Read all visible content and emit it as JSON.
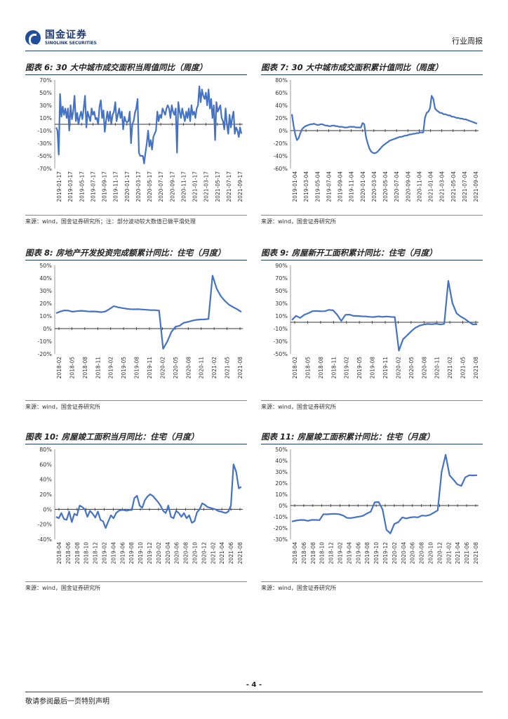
{
  "header": {
    "logo_cn": "国金证券",
    "logo_en": "SINOLINK SECURITIES",
    "report_type": "行业周报"
  },
  "footer": {
    "page": "- 4 -",
    "note": "敬请参阅最后一页特别声明"
  },
  "colors": {
    "line": "#4472c4",
    "rule": "#1f3b78"
  },
  "panels": [
    {
      "title": "图表 6: 30 大中城市成交面积当周值同比（周度）",
      "source": "来源：wind，国金证券研究所；注：部分波动较大数值已做平滑处理"
    },
    {
      "title": "图表 7: 30 大中城市成交面积累计值同比（周度）",
      "source": "来源：wind，国金证券研究所"
    },
    {
      "title": "图表 8: 房地产开发投资完成额累计同比：住宅（月度）",
      "source": "来源：wind，国金证券研究所"
    },
    {
      "title": "图表 9: 房屋新开工面积累计同比：住宅（月度）",
      "source": "来源：wind，国金证券研究所"
    },
    {
      "title": "图表 10: 房屋竣工面积当月同比：住宅（月度）",
      "source": "来源：wind，国金证券研究所"
    },
    {
      "title": "图表 11: 房屋竣工面积累计同比：住宅（月度）",
      "source": "来源：wind，国金证券研究所"
    }
  ],
  "chart_data": [
    {
      "type": "line",
      "title": "图表 6: 30 大中城市成交面积当周值同比（周度）",
      "ylim": [
        -70,
        70
      ],
      "yticks": [
        70,
        50,
        30,
        10,
        -10,
        -30,
        -50,
        -70
      ],
      "ytick_labels": [
        "70%",
        "50%",
        "30%",
        "10%",
        "-10%",
        "-30%",
        "-50%",
        "-70%"
      ],
      "xtick_labels": [
        "2019-01-17",
        "2019-03-17",
        "2019-05-17",
        "2019-07-17",
        "2019-09-17",
        "2019-11-17",
        "2020-01-17",
        "2020-03-17",
        "2020-05-17",
        "2020-07-17",
        "2020-09-17",
        "2020-11-17",
        "2021-01-17",
        "2021-03-17",
        "2021-05-17",
        "2021-07-17",
        "2021-09-17"
      ],
      "series": [
        {
          "name": "30大中城市成交面积当周值同比",
          "values": [
            -5,
            -10,
            -48,
            48,
            12,
            28,
            15,
            25,
            10,
            25,
            -10,
            30,
            8,
            20,
            45,
            5,
            18,
            0,
            12,
            20,
            8,
            25,
            45,
            -5,
            20,
            12,
            5,
            25,
            15,
            20,
            8,
            10,
            0,
            28,
            38,
            10,
            22,
            -12,
            5,
            20,
            5,
            20,
            0,
            15,
            20,
            35,
            5,
            15,
            25,
            10,
            20,
            -8,
            12,
            5,
            3,
            5,
            20,
            -30,
            0,
            5,
            18,
            25,
            40,
            -45,
            -50,
            -50,
            -50,
            -62,
            -45,
            -30,
            -10,
            -35,
            -25,
            -40,
            -20,
            -15,
            -10,
            20,
            5,
            15,
            10,
            25,
            20,
            15,
            25,
            30,
            25,
            10,
            30,
            20,
            15,
            25,
            -45,
            35,
            20,
            10,
            25,
            15,
            5,
            20,
            10,
            25,
            5,
            30,
            15,
            20,
            10,
            25,
            30,
            60,
            35,
            55,
            45,
            40,
            50,
            30,
            55,
            25,
            40,
            10,
            30,
            -25,
            35,
            20,
            25,
            30,
            10,
            5,
            -8,
            25,
            0,
            -15,
            15,
            -5,
            10,
            20,
            -15,
            -5,
            -10,
            -20,
            -5,
            -15
          ]
        }
      ]
    },
    {
      "type": "line",
      "title": "图表 7: 30 大中城市成交面积累计值同比（周度）",
      "ylim": [
        -60,
        80
      ],
      "yticks": [
        80,
        60,
        40,
        20,
        0,
        -20,
        -40,
        -60
      ],
      "ytick_labels": [
        "80%",
        "60%",
        "40%",
        "20%",
        "0%",
        "-20%",
        "-40%",
        "-60%"
      ],
      "xtick_labels": [
        "2019-01-04",
        "2019-03-04",
        "2019-05-04",
        "2019-07-04",
        "2019-09-04",
        "2019-11-04",
        "2020-01-04",
        "2020-03-04",
        "2020-05-04",
        "2020-07-04",
        "2020-09-04",
        "2020-11-04",
        "2021-01-04",
        "2021-03-04",
        "2021-05-04",
        "2021-07-04",
        "2021-09-04"
      ],
      "series": [
        {
          "name": "30大中城市成交面积累计值同比",
          "values": [
            26,
            8,
            -6,
            -15,
            -12,
            -4,
            2,
            5,
            7,
            8,
            9,
            10,
            10,
            11,
            10,
            9,
            9,
            10,
            10,
            9,
            8,
            8,
            7,
            7,
            8,
            8,
            7,
            7,
            6,
            6,
            6,
            5,
            5,
            5,
            6,
            6,
            6,
            6,
            5,
            5,
            5,
            5,
            12,
            10,
            -10,
            -20,
            -28,
            -33,
            -35,
            -36,
            -35,
            -33,
            -30,
            -27,
            -24,
            -22,
            -20,
            -18,
            -16,
            -15,
            -14,
            -13,
            -12,
            -11,
            -10,
            -10,
            -9,
            -8,
            -8,
            -7,
            -6,
            -6,
            -5,
            -5,
            -4,
            -4,
            -3,
            -3,
            -3,
            20,
            28,
            30,
            35,
            55,
            50,
            35,
            32,
            30,
            28,
            28,
            26,
            26,
            25,
            24,
            24,
            22,
            22,
            21,
            20,
            20,
            19,
            19,
            18,
            18,
            17,
            16,
            15,
            14,
            13,
            12,
            11
          ]
        }
      ]
    },
    {
      "type": "line",
      "title": "图表 8: 房地产开发投资完成额累计同比：住宅（月度）",
      "ylim": [
        -20,
        50
      ],
      "yticks": [
        50,
        40,
        30,
        20,
        10,
        0,
        -10,
        -20
      ],
      "ytick_labels": [
        "50%",
        "40%",
        "30%",
        "20%",
        "10%",
        "0%",
        "-10%",
        "-20%"
      ],
      "xtick_labels": [
        "2018-02",
        "2018-05",
        "2018-08",
        "2018-11",
        "2019-02",
        "2019-05",
        "2019-08",
        "2019-11",
        "2020-02",
        "2020-05",
        "2020-08",
        "2020-11",
        "2021-02",
        "2021-05",
        "2021-08"
      ],
      "series": [
        {
          "name": "房地产开发投资完成额累计同比：住宅",
          "values": [
            12.2,
            13.5,
            14.4,
            14.2,
            13.4,
            13.8,
            14.1,
            13.9,
            13.5,
            13.6,
            13.4,
            13.0,
            13.6,
            15.6,
            17.8,
            16.9,
            16.3,
            15.8,
            15.4,
            15.3,
            15.4,
            15.1,
            14.9,
            14.6,
            14.6,
            14.3,
            -16.0,
            -10.2,
            -2.6,
            1.5,
            2.3,
            4.6,
            5.3,
            6.2,
            6.9,
            7.2,
            7.3,
            7.6,
            41.9,
            31.6,
            25.7,
            21.9,
            18.9,
            17.0,
            15.3,
            13.2
          ]
        }
      ]
    },
    {
      "type": "line",
      "title": "图表 9: 房屋新开工面积累计同比：住宅（月度）",
      "ylim": [
        -50,
        90
      ],
      "yticks": [
        90,
        70,
        50,
        30,
        10,
        -10,
        -30,
        -50
      ],
      "ytick_labels": [
        "90%",
        "70%",
        "50%",
        "30%",
        "10%",
        "-10%",
        "-30%",
        "-50%"
      ],
      "xtick_labels": [
        "2018-02",
        "2018-05",
        "2018-08",
        "2018-11",
        "2019-02",
        "2019-05",
        "2019-08",
        "2019-11",
        "2020-02",
        "2020-05",
        "2020-08",
        "2020-11",
        "2021-02",
        "2021-05",
        "2021-08"
      ],
      "series": [
        {
          "name": "房屋新开工面积累计同比：住宅",
          "values": [
            3.6,
            10.2,
            6.9,
            11.8,
            14.5,
            17.6,
            17.9,
            17.4,
            17.6,
            19.7,
            19.0,
            12.0,
            2.0,
            11.9,
            12.1,
            10.1,
            10.0,
            9.5,
            9.2,
            8.6,
            8.3,
            9.3,
            8.6,
            9.2,
            8.5,
            8.2,
            -44.9,
            -26.9,
            -20.6,
            -14.2,
            -8.7,
            -5.3,
            -3.6,
            -2.7,
            -3.1,
            -2.3,
            -3.4,
            -2.6,
            65.6,
            30.3,
            14.2,
            9.1,
            5.5,
            0.5,
            -3.3,
            -3.1
          ]
        }
      ]
    },
    {
      "type": "line",
      "title": "图表 10: 房屋竣工面积当月同比：住宅（月度）",
      "ylim": [
        -40,
        80
      ],
      "yticks": [
        80,
        60,
        40,
        20,
        0,
        -20,
        -40
      ],
      "ytick_labels": [
        "80%",
        "60%",
        "40%",
        "20%",
        "0%",
        "-20%",
        "-40%"
      ],
      "xtick_labels": [
        "2018-04",
        "2018-06",
        "2018-08",
        "2018-10",
        "2018-12",
        "2019-02",
        "2019-04",
        "2019-06",
        "2019-08",
        "2019-10",
        "2019-12",
        "2020-02",
        "2020-04",
        "2020-06",
        "2020-08",
        "2020-10",
        "2020-12",
        "2021-02",
        "2021-04",
        "2021-06",
        "2021-08"
      ],
      "series": [
        {
          "name": "房屋竣工面积当月同比：住宅",
          "values": [
            -10,
            -12,
            -5,
            -13,
            -14,
            -3,
            -17,
            -6,
            -8,
            5,
            3,
            0,
            -10,
            -2,
            -6,
            -11,
            -3,
            -14,
            -16,
            -25,
            -16,
            -8,
            -12,
            -5,
            -2,
            -1,
            -1,
            -2,
            -1,
            -1,
            15,
            18,
            5,
            2,
            12,
            17,
            20,
            18,
            14,
            10,
            5,
            -2,
            -5,
            5,
            -10,
            -12,
            -2,
            -5,
            -10,
            -5,
            -12,
            -8,
            -18,
            -16,
            -4,
            0,
            8,
            6,
            3,
            2,
            1,
            0,
            -2,
            -3,
            -4,
            -5,
            -3,
            5,
            60,
            50,
            28,
            30
          ]
        }
      ]
    },
    {
      "type": "line",
      "title": "图表 11: 房屋竣工面积累计同比：住宅（月度）",
      "ylim": [
        -30,
        50
      ],
      "yticks": [
        50,
        40,
        30,
        20,
        10,
        0,
        -10,
        -20,
        -30
      ],
      "ytick_labels": [
        "50%",
        "40%",
        "30%",
        "20%",
        "10%",
        "0%",
        "-10%",
        "-20%",
        "-30%"
      ],
      "xtick_labels": [
        "2018-04",
        "2018-06",
        "2018-08",
        "2018-10",
        "2018-12",
        "2019-02",
        "2019-04",
        "2019-06",
        "2019-08",
        "2019-10",
        "2019-12",
        "2020-02",
        "2020-04",
        "2020-06",
        "2020-08",
        "2020-10",
        "2020-12",
        "2021-02",
        "2021-04",
        "2021-06",
        "2021-08"
      ],
      "series": [
        {
          "name": "房屋竣工面积累计同比：住宅",
          "values": [
            -14.2,
            -13.4,
            -12.9,
            -12.8,
            -13.6,
            -12.8,
            -12.8,
            -13.0,
            -7.7,
            -7.8,
            -7.5,
            -7.4,
            -7.7,
            -8.9,
            -11.0,
            -11.1,
            -10.5,
            -9.9,
            -9.2,
            -7.1,
            -5.5,
            2.9,
            3.1,
            -3.4,
            -21.7,
            -24.8,
            -16.3,
            -14.8,
            -10.5,
            -11.5,
            -10.6,
            -10.2,
            -10.5,
            -8.9,
            -9.2,
            -8.3,
            -6.4,
            -4.3,
            30.0,
            45.2,
            27.0,
            23.0,
            18.8,
            17.5,
            25.1,
            27.0,
            26.8,
            27.0
          ]
        }
      ]
    }
  ]
}
